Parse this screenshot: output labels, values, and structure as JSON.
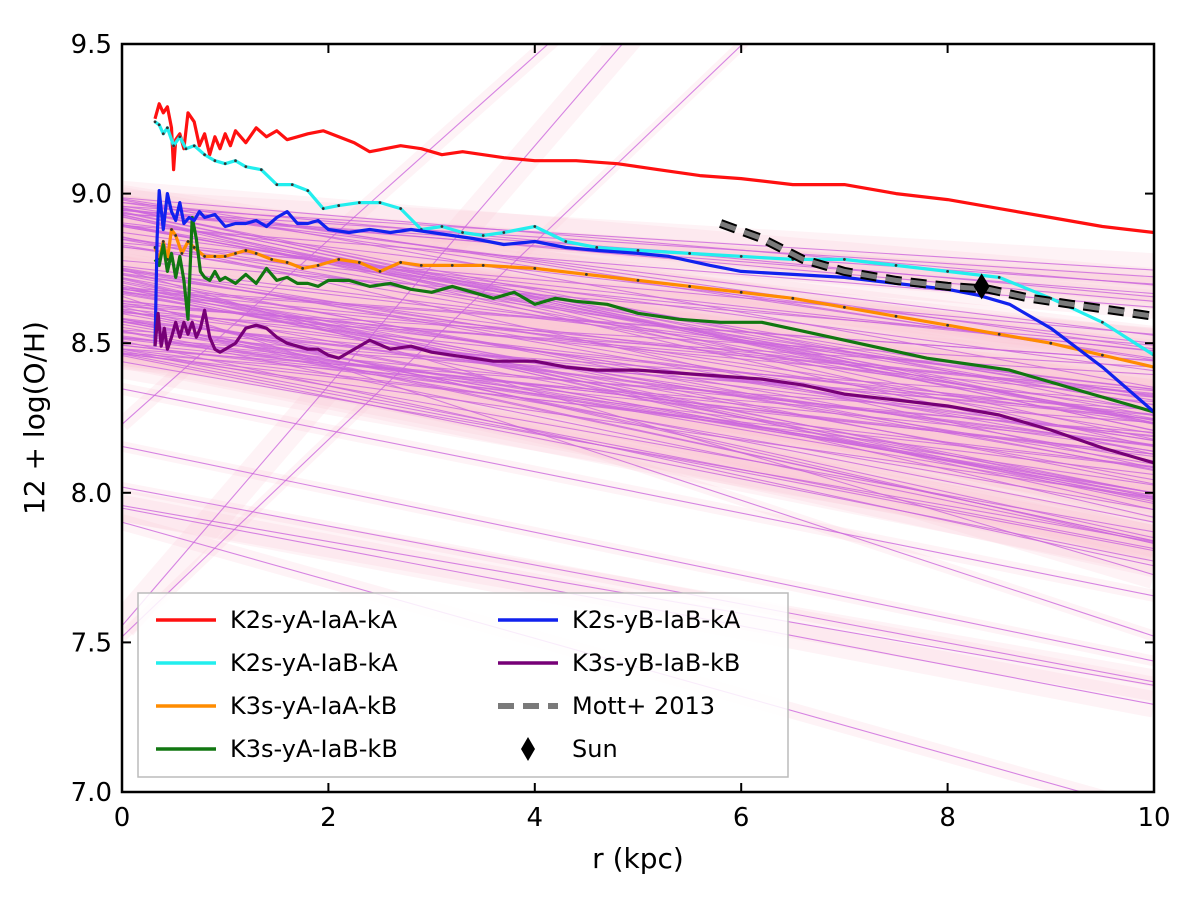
{
  "chart_data": {
    "type": "line",
    "title": "",
    "xlabel": "r (kpc)",
    "ylabel": "12 + log(O/H)",
    "xlim": [
      0,
      10
    ],
    "ylim": [
      7.0,
      9.5
    ],
    "x_ticks": [
      "0",
      "2",
      "4",
      "6",
      "8",
      "10"
    ],
    "y_ticks": [
      "7.0",
      "7.5",
      "8.0",
      "8.5",
      "9.0",
      "9.5"
    ],
    "grid": false,
    "legend_position": "lower-left",
    "background_gradients": {
      "count": 120,
      "band_color": "#f9c9d4",
      "line_color": "#cc66dd",
      "note": "many individual linear gradients with pink uncertainty bands"
    },
    "series": [
      {
        "name": "K2s-yA-IaA-kA",
        "color": "#ff1010",
        "x": [
          0.32,
          0.36,
          0.4,
          0.44,
          0.48,
          0.5,
          0.52,
          0.56,
          0.6,
          0.64,
          0.7,
          0.75,
          0.8,
          0.85,
          0.9,
          0.95,
          1.0,
          1.05,
          1.1,
          1.2,
          1.3,
          1.4,
          1.5,
          1.6,
          1.7,
          1.8,
          1.95,
          2.1,
          2.25,
          2.4,
          2.55,
          2.7,
          2.9,
          3.1,
          3.3,
          3.5,
          3.7,
          4.0,
          4.4,
          4.8,
          5.2,
          5.6,
          6.0,
          6.5,
          7.0,
          7.5,
          8.0,
          8.5,
          9.0,
          9.5,
          10.0
        ],
        "values": [
          9.25,
          9.3,
          9.27,
          9.29,
          9.22,
          9.08,
          9.18,
          9.2,
          9.15,
          9.27,
          9.24,
          9.16,
          9.2,
          9.13,
          9.19,
          9.15,
          9.2,
          9.16,
          9.21,
          9.17,
          9.22,
          9.19,
          9.21,
          9.18,
          9.19,
          9.2,
          9.21,
          9.19,
          9.17,
          9.14,
          9.15,
          9.16,
          9.15,
          9.13,
          9.14,
          9.13,
          9.12,
          9.11,
          9.11,
          9.1,
          9.08,
          9.06,
          9.05,
          9.03,
          9.03,
          9.0,
          8.98,
          8.95,
          8.92,
          8.89,
          8.87
        ]
      },
      {
        "name": "K2s-yA-IaB-kA",
        "color": "#22eeee",
        "x": [
          0.32,
          0.36,
          0.4,
          0.44,
          0.5,
          0.56,
          0.62,
          0.7,
          0.8,
          0.9,
          1.0,
          1.1,
          1.2,
          1.35,
          1.5,
          1.65,
          1.8,
          1.95,
          2.1,
          2.3,
          2.5,
          2.7,
          2.9,
          3.1,
          3.3,
          3.5,
          3.7,
          4.0,
          4.3,
          4.6,
          5.0,
          5.5,
          6.0,
          6.5,
          7.0,
          7.5,
          8.0,
          8.5,
          9.0,
          9.5,
          10.0
        ],
        "values": [
          9.24,
          9.23,
          9.2,
          9.22,
          9.16,
          9.19,
          9.15,
          9.16,
          9.13,
          9.11,
          9.1,
          9.11,
          9.09,
          9.08,
          9.03,
          9.03,
          9.01,
          8.95,
          8.96,
          8.97,
          8.97,
          8.95,
          8.88,
          8.89,
          8.87,
          8.86,
          8.87,
          8.89,
          8.84,
          8.82,
          8.81,
          8.8,
          8.79,
          8.78,
          8.78,
          8.76,
          8.74,
          8.72,
          8.65,
          8.57,
          8.46
        ]
      },
      {
        "name": "K3s-yA-IaA-kB",
        "color": "#ff8c00",
        "x": [
          0.32,
          0.36,
          0.4,
          0.44,
          0.48,
          0.52,
          0.58,
          0.64,
          0.7,
          0.8,
          0.9,
          1.0,
          1.1,
          1.2,
          1.3,
          1.45,
          1.6,
          1.75,
          1.9,
          2.1,
          2.3,
          2.5,
          2.7,
          2.9,
          3.2,
          3.5,
          4.0,
          4.5,
          5.0,
          5.5,
          6.0,
          6.5,
          7.0,
          7.5,
          8.0,
          8.5,
          9.0,
          9.5,
          10.0
        ],
        "values": [
          8.82,
          8.78,
          8.84,
          8.78,
          8.88,
          8.86,
          8.8,
          8.84,
          8.82,
          8.79,
          8.79,
          8.79,
          8.8,
          8.81,
          8.8,
          8.78,
          8.77,
          8.75,
          8.76,
          8.78,
          8.77,
          8.74,
          8.77,
          8.76,
          8.76,
          8.76,
          8.75,
          8.73,
          8.71,
          8.69,
          8.67,
          8.65,
          8.62,
          8.59,
          8.56,
          8.53,
          8.5,
          8.46,
          8.42
        ]
      },
      {
        "name": "K3s-yA-IaB-kB",
        "color": "#117711",
        "x": [
          0.32,
          0.36,
          0.4,
          0.44,
          0.48,
          0.52,
          0.56,
          0.6,
          0.64,
          0.68,
          0.72,
          0.76,
          0.8,
          0.85,
          0.9,
          0.95,
          1.0,
          1.1,
          1.2,
          1.3,
          1.4,
          1.5,
          1.6,
          1.7,
          1.8,
          1.9,
          2.0,
          2.2,
          2.4,
          2.6,
          2.8,
          3.0,
          3.2,
          3.4,
          3.6,
          3.8,
          4.0,
          4.2,
          4.4,
          4.7,
          5.0,
          5.4,
          5.8,
          6.2,
          6.6,
          7.0,
          7.4,
          7.8,
          8.2,
          8.6,
          9.0,
          9.4,
          9.7,
          10.0
        ],
        "values": [
          8.78,
          8.76,
          8.83,
          8.74,
          8.8,
          8.72,
          8.79,
          8.71,
          8.58,
          8.92,
          8.85,
          8.74,
          8.72,
          8.71,
          8.74,
          8.71,
          8.72,
          8.7,
          8.73,
          8.7,
          8.75,
          8.71,
          8.72,
          8.7,
          8.7,
          8.69,
          8.71,
          8.71,
          8.69,
          8.7,
          8.68,
          8.67,
          8.69,
          8.67,
          8.65,
          8.67,
          8.63,
          8.65,
          8.64,
          8.63,
          8.6,
          8.58,
          8.57,
          8.57,
          8.54,
          8.51,
          8.48,
          8.45,
          8.43,
          8.41,
          8.37,
          8.33,
          8.3,
          8.27
        ]
      },
      {
        "name": "K2s-yB-IaB-kA",
        "color": "#1122ee",
        "x": [
          0.32,
          0.34,
          0.36,
          0.4,
          0.44,
          0.48,
          0.52,
          0.56,
          0.6,
          0.65,
          0.7,
          0.75,
          0.8,
          0.9,
          1.0,
          1.1,
          1.2,
          1.3,
          1.4,
          1.5,
          1.6,
          1.7,
          1.8,
          1.9,
          2.0,
          2.2,
          2.4,
          2.6,
          2.8,
          3.0,
          3.2,
          3.4,
          3.7,
          4.0,
          4.3,
          4.6,
          5.0,
          5.3,
          5.7,
          6.0,
          6.5,
          7.0,
          7.5,
          8.0,
          8.3,
          8.6,
          9.0,
          9.5,
          10.0
        ],
        "values": [
          8.49,
          8.85,
          9.01,
          8.88,
          9.0,
          8.94,
          8.91,
          8.97,
          8.9,
          8.92,
          8.91,
          8.94,
          8.92,
          8.93,
          8.89,
          8.9,
          8.9,
          8.91,
          8.89,
          8.92,
          8.94,
          8.9,
          8.9,
          8.91,
          8.88,
          8.87,
          8.88,
          8.87,
          8.88,
          8.87,
          8.86,
          8.85,
          8.83,
          8.84,
          8.82,
          8.81,
          8.8,
          8.79,
          8.76,
          8.74,
          8.73,
          8.72,
          8.7,
          8.68,
          8.66,
          8.63,
          8.55,
          8.42,
          8.27
        ]
      },
      {
        "name": "K3s-yB-IaB-kB",
        "color": "#770077",
        "x": [
          0.32,
          0.35,
          0.38,
          0.41,
          0.44,
          0.48,
          0.52,
          0.56,
          0.6,
          0.64,
          0.68,
          0.72,
          0.76,
          0.8,
          0.85,
          0.9,
          0.95,
          1.0,
          1.1,
          1.2,
          1.3,
          1.4,
          1.5,
          1.6,
          1.7,
          1.8,
          1.9,
          2.0,
          2.1,
          2.2,
          2.4,
          2.6,
          2.8,
          3.0,
          3.2,
          3.4,
          3.6,
          3.8,
          4.0,
          4.3,
          4.6,
          5.0,
          5.4,
          5.8,
          6.2,
          6.6,
          7.0,
          7.5,
          8.0,
          8.5,
          9.0,
          9.5,
          10.0
        ],
        "values": [
          8.49,
          8.6,
          8.49,
          8.55,
          8.48,
          8.52,
          8.57,
          8.52,
          8.57,
          8.53,
          8.57,
          8.52,
          8.55,
          8.61,
          8.52,
          8.48,
          8.47,
          8.48,
          8.5,
          8.55,
          8.56,
          8.55,
          8.52,
          8.5,
          8.49,
          8.48,
          8.48,
          8.46,
          8.45,
          8.47,
          8.51,
          8.48,
          8.49,
          8.47,
          8.46,
          8.45,
          8.44,
          8.44,
          8.44,
          8.42,
          8.41,
          8.41,
          8.4,
          8.39,
          8.38,
          8.36,
          8.33,
          8.31,
          8.29,
          8.26,
          8.21,
          8.15,
          8.1
        ]
      },
      {
        "name": "Mott+ 2013",
        "color": "#7a7a7a",
        "dashed": true,
        "x": [
          5.8,
          6.2,
          6.6,
          7.0,
          7.5,
          8.0,
          8.4,
          8.8,
          9.2,
          9.6,
          10.0
        ],
        "values": [
          8.9,
          8.85,
          8.78,
          8.74,
          8.71,
          8.69,
          8.68,
          8.65,
          8.63,
          8.61,
          8.59
        ]
      }
    ],
    "markers": [
      {
        "name": "Sun",
        "x": 8.33,
        "y": 8.69,
        "shape": "diamond",
        "color": "#000000"
      }
    ],
    "legend": [
      {
        "label": "K2s-yA-IaA-kA",
        "color": "#ff1010",
        "style": "solid"
      },
      {
        "label": "K2s-yA-IaB-kA",
        "color": "#22eeee",
        "style": "solid"
      },
      {
        "label": "K3s-yA-IaA-kB",
        "color": "#ff8c00",
        "style": "solid"
      },
      {
        "label": "K3s-yA-IaB-kB",
        "color": "#117711",
        "style": "solid"
      },
      {
        "label": "K2s-yB-IaB-kA",
        "color": "#1122ee",
        "style": "solid"
      },
      {
        "label": "K3s-yB-IaB-kB",
        "color": "#770077",
        "style": "solid"
      },
      {
        "label": "Mott+ 2013",
        "color": "#7a7a7a",
        "style": "dashed"
      },
      {
        "label": "Sun",
        "color": "#000000",
        "style": "diamond"
      }
    ]
  }
}
